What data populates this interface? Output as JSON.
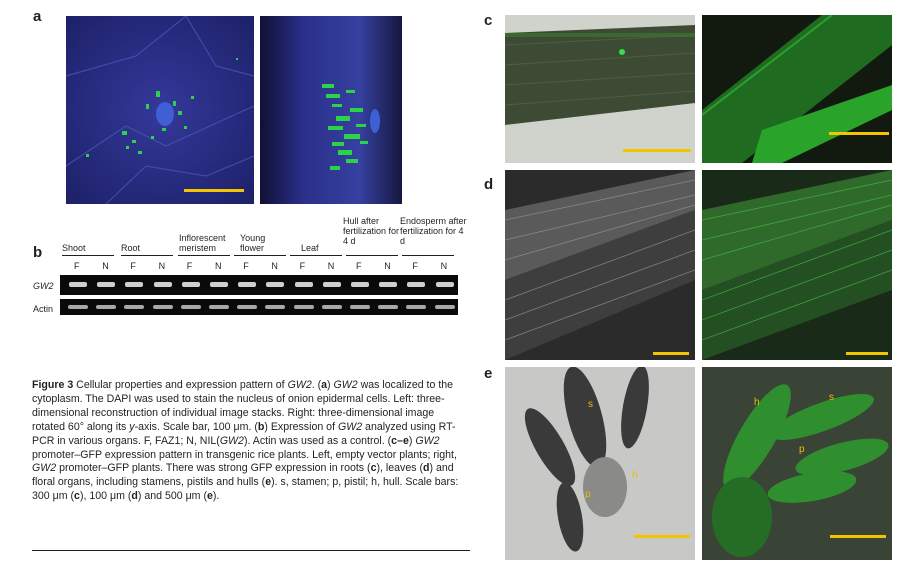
{
  "panels": {
    "a": "a",
    "b": "b",
    "c": "c",
    "d": "d",
    "e": "e"
  },
  "gel": {
    "groups": [
      "Shoot",
      "Root",
      "Inflorescent meristem",
      "Young flower",
      "Leaf",
      "Hull after fertilization for 4 d",
      "Endosperm after fertilization for 4 d"
    ],
    "lane_labels": [
      "F",
      "N",
      "F",
      "N",
      "F",
      "N",
      "F",
      "N",
      "F",
      "N",
      "F",
      "N",
      "F",
      "N"
    ],
    "rows": [
      "GW2",
      "Actin"
    ]
  },
  "micro_labels": {
    "s_left": "s",
    "h_left": "h",
    "p_left": "p",
    "h_right": "h",
    "s_right": "s",
    "p_right": "p"
  },
  "caption": {
    "fig": "Figure 3",
    "p1": " Cellular properties and expression pattern of ",
    "gw2_1": "GW2",
    "p2": ". (",
    "a": "a",
    "p3": ") ",
    "gw2_2": "GW2",
    "p4": " was localized to the cytoplasm. The DAPI was used to stain the nucleus of onion epidermal cells. Left: three-dimensional reconstruction of individual image stacks. Right: three-dimensional image rotated 60° along its ",
    "yaxis": "y",
    "p5": "-axis. Scale bar, 100 μm. (",
    "b": "b",
    "p6": ") Expression of ",
    "gw2_3": "GW2",
    "p7": " analyzed using RT-PCR in various organs. F, FAZ1; N, NIL(",
    "gw2_4": "GW2",
    "p8": "). Actin was used as a control. (",
    "ce": "c–e",
    "p9": ") ",
    "gw2_5": "GW2",
    "p10": " promoter–GFP expression pattern in transgenic rice plants. Left, empty vector plants; right, ",
    "gw2_6": "GW2",
    "p11": " promoter–GFP plants. There was strong GFP expression in roots (",
    "c": "c",
    "p12": "), leaves (",
    "d": "d",
    "p13": ") and floral organs, including stamens, pistils and hulls (",
    "e": "e",
    "p14": "). s, stamen; p, pistil; h, hull. Scale bars: 300 μm (",
    "c2": "c",
    "p15": "), 100 μm (",
    "d2": "d",
    "p16": ") and 500 μm (",
    "e2": "e",
    "p17": ")."
  },
  "colors": {
    "scale_bar": "#f5c400",
    "gfp": "#2bd34a",
    "dapi_bg": "#2a2f8a"
  }
}
